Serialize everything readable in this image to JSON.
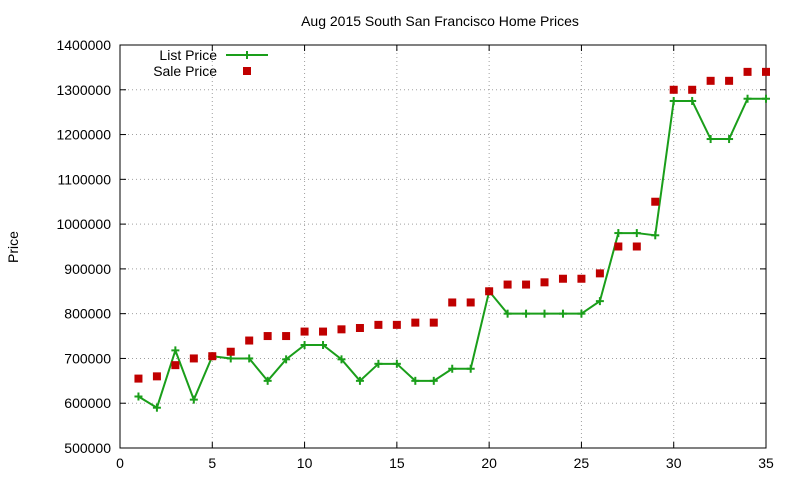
{
  "chart_data": {
    "type": "line",
    "title": "Aug 2015 South San Francisco Home Prices",
    "xlabel": "",
    "ylabel": "Price",
    "xlim": [
      0,
      35
    ],
    "ylim": [
      500000,
      1400000
    ],
    "xticks": [
      0,
      5,
      10,
      15,
      20,
      25,
      30,
      35
    ],
    "yticks": [
      500000,
      600000,
      700000,
      800000,
      900000,
      1000000,
      1100000,
      1200000,
      1300000,
      1400000
    ],
    "grid": true,
    "legend_position": "top-left",
    "x": [
      1,
      2,
      3,
      4,
      5,
      6,
      7,
      8,
      9,
      10,
      11,
      12,
      13,
      14,
      15,
      16,
      17,
      18,
      19,
      20,
      21,
      22,
      23,
      24,
      25,
      26,
      27,
      28,
      29,
      30,
      31,
      32,
      33,
      34,
      35
    ],
    "series": [
      {
        "name": "List Price",
        "style": "line-plus",
        "color": "#1a9e1a",
        "values": [
          615000,
          590000,
          718000,
          608000,
          705000,
          700000,
          700000,
          650000,
          698000,
          730000,
          730000,
          698000,
          650000,
          688000,
          688000,
          650000,
          650000,
          677000,
          677000,
          850000,
          800000,
          800000,
          800000,
          800000,
          800000,
          828000,
          980000,
          980000,
          975000,
          1275000,
          1275000,
          1190000,
          1190000,
          1280000,
          1280000
        ]
      },
      {
        "name": "Sale Price",
        "style": "square-points",
        "color": "#c00000",
        "values": [
          655000,
          660000,
          685000,
          700000,
          705000,
          715000,
          740000,
          750000,
          750000,
          760000,
          760000,
          765000,
          768000,
          775000,
          775000,
          780000,
          780000,
          825000,
          825000,
          850000,
          865000,
          865000,
          870000,
          878000,
          878000,
          890000,
          950000,
          950000,
          1050000,
          1300000,
          1300000,
          1320000,
          1320000,
          1340000,
          1340000
        ]
      }
    ]
  }
}
